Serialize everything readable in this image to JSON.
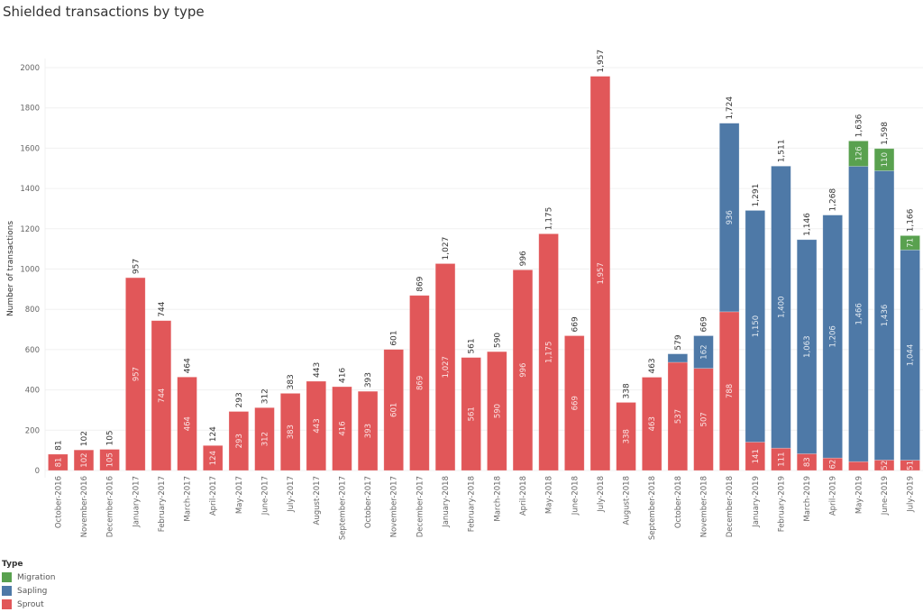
{
  "chart_data": {
    "type": "bar",
    "stacked": true,
    "title": "Shielded transactions by type",
    "xlabel": "",
    "ylabel": "Number of transactions",
    "ylim": [
      0,
      2000
    ],
    "yticks": [
      0,
      200,
      400,
      600,
      800,
      1000,
      1200,
      1400,
      1600,
      1800,
      2000
    ],
    "grid": true,
    "legend_title": "Type",
    "legend_position": "bottom-left",
    "categories": [
      "October-2016",
      "November-2016",
      "December-2016",
      "January-2017",
      "February-2017",
      "March-2017",
      "April-2017",
      "May-2017",
      "June-2017",
      "July-2017",
      "August-2017",
      "September-2017",
      "October-2017",
      "November-2017",
      "December-2017",
      "January-2018",
      "February-2018",
      "March-2018",
      "April-2018",
      "May-2018",
      "June-2018",
      "July-2018",
      "August-2018",
      "September-2018",
      "October-2018",
      "November-2018",
      "December-2018",
      "January-2019",
      "February-2019",
      "March-2019",
      "April-2019",
      "May-2019",
      "June-2019",
      "July-2019"
    ],
    "series": [
      {
        "name": "Sprout",
        "color": "#e15759",
        "values": [
          81,
          102,
          105,
          957,
          744,
          464,
          124,
          293,
          312,
          383,
          443,
          416,
          393,
          601,
          869,
          1027,
          561,
          590,
          996,
          1175,
          669,
          1957,
          338,
          463,
          537,
          507,
          788,
          141,
          111,
          83,
          62,
          44,
          52,
          51
        ],
        "labels": [
          "81",
          "102",
          "105",
          "957",
          "744",
          "464",
          "124",
          "293",
          "312",
          "383",
          "443",
          "416",
          "393",
          "601",
          "869",
          "1,027",
          "561",
          "590",
          "996",
          "1,175",
          "669",
          "1,957",
          "338",
          "463",
          "537",
          "507",
          "788",
          "141",
          "111",
          "83",
          "62",
          "",
          "52",
          "51"
        ]
      },
      {
        "name": "Sapling",
        "color": "#4e79a7",
        "values": [
          0,
          0,
          0,
          0,
          0,
          0,
          0,
          0,
          0,
          0,
          0,
          0,
          0,
          0,
          0,
          0,
          0,
          0,
          0,
          0,
          0,
          0,
          0,
          0,
          42,
          162,
          936,
          1150,
          1400,
          1063,
          1206,
          1466,
          1436,
          1044
        ],
        "labels": [
          "",
          "",
          "",
          "",
          "",
          "",
          "",
          "",
          "",
          "",
          "",
          "",
          "",
          "",
          "",
          "",
          "",
          "",
          "",
          "",
          "",
          "",
          "",
          "",
          "",
          "162",
          "936",
          "1,150",
          "1,400",
          "1,063",
          "1,206",
          "1,466",
          "1,436",
          "1,044"
        ]
      },
      {
        "name": "Migration",
        "color": "#59a14f",
        "values": [
          0,
          0,
          0,
          0,
          0,
          0,
          0,
          0,
          0,
          0,
          0,
          0,
          0,
          0,
          0,
          0,
          0,
          0,
          0,
          0,
          0,
          0,
          0,
          0,
          0,
          0,
          0,
          0,
          0,
          0,
          0,
          126,
          110,
          71
        ],
        "labels": [
          "",
          "",
          "",
          "",
          "",
          "",
          "",
          "",
          "",
          "",
          "",
          "",
          "",
          "",
          "",
          "",
          "",
          "",
          "",
          "",
          "",
          "",
          "",
          "",
          "",
          "",
          "",
          "",
          "",
          "",
          "",
          "126",
          "110",
          "71"
        ]
      }
    ],
    "totals": [
      "81",
      "102",
      "105",
      "957",
      "744",
      "464",
      "124",
      "293",
      "312",
      "383",
      "443",
      "416",
      "393",
      "601",
      "869",
      "1,027",
      "561",
      "590",
      "996",
      "1,175",
      "669",
      "1,957",
      "338",
      "463",
      "579",
      "669",
      "1,724",
      "1,291",
      "1,511",
      "1,146",
      "1,268",
      "1,636",
      "1,598",
      "1,166"
    ],
    "legend": [
      {
        "label": "Migration",
        "color": "#59a14f"
      },
      {
        "label": "Sapling",
        "color": "#4e79a7"
      },
      {
        "label": "Sprout",
        "color": "#e15759"
      }
    ]
  }
}
